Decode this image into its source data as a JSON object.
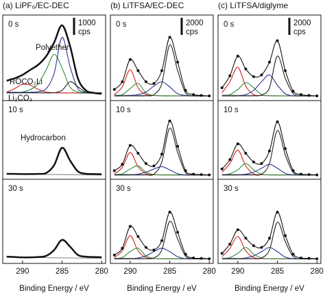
{
  "chart_data": [
    {
      "type": "line",
      "title": "(a) LiPF₆/EC-DEC",
      "label": "0 s",
      "x": [
        292,
        291,
        290,
        289,
        288,
        287,
        286,
        285,
        284,
        283,
        282,
        281,
        280
      ],
      "xlim": [
        292.5,
        279.5
      ],
      "ylim": [
        0,
        5000
      ],
      "scale_bar": {
        "value": 1000,
        "label": "1000",
        "unit": "cps"
      },
      "annotations": [
        {
          "text": "Polyether",
          "color": "#26348f"
        },
        {
          "text": "ROCO₂Li",
          "color": "#2e8b3a"
        },
        {
          "text": "Li₂CO₃",
          "color": "#d42020"
        }
      ],
      "series": [
        {
          "color": "#888888",
          "values": [
            500,
            490,
            480,
            470,
            460,
            455,
            450,
            445,
            440,
            435,
            430,
            425,
            420
          ]
        },
        {
          "color": "#d42020",
          "values": [
            500,
            700,
            950,
            900,
            650,
            500,
            460,
            450,
            450,
            450,
            450,
            450,
            450
          ]
        },
        {
          "color": "#2e8b3a",
          "values": [
            450,
            460,
            500,
            650,
            1000,
            1800,
            2700,
            1900,
            800,
            500,
            450,
            450,
            450
          ]
        },
        {
          "color": "#26348f",
          "values": [
            480,
            480,
            480,
            490,
            520,
            700,
            1600,
            3700,
            2000,
            700,
            480,
            460,
            450
          ]
        },
        {
          "color": "#222222",
          "values": [
            450,
            450,
            450,
            450,
            450,
            450,
            460,
            600,
            1100,
            800,
            500,
            450,
            450
          ]
        },
        {
          "color": "#111111",
          "width": 2.5,
          "values": [
            1160,
            1300,
            1500,
            1800,
            2100,
            2600,
            3400,
            4400,
            3200,
            1300,
            600,
            450,
            400
          ]
        }
      ]
    },
    {
      "type": "line",
      "label": "10 s",
      "x": [
        292,
        291,
        290,
        289,
        288,
        287,
        286,
        285,
        284,
        283,
        282,
        281,
        280
      ],
      "xlim": [
        292.5,
        279.5
      ],
      "ylim": [
        0,
        5000
      ],
      "annotations": [
        {
          "text": "Hydrocarbon",
          "color": "#111111"
        }
      ],
      "series": [
        {
          "color": "#888888",
          "values": [
            330,
            325,
            320,
            315,
            310,
            305,
            300,
            295,
            290,
            285,
            280,
            275,
            270
          ]
        },
        {
          "color": "#111111",
          "width": 2.5,
          "values": [
            350,
            340,
            330,
            330,
            340,
            400,
            900,
            2000,
            1200,
            500,
            350,
            330,
            320
          ]
        }
      ]
    },
    {
      "type": "line",
      "label": "30 s",
      "x": [
        292,
        291,
        290,
        289,
        288,
        287,
        286,
        285,
        284,
        283,
        282,
        281,
        280
      ],
      "xlim": [
        292.5,
        279.5
      ],
      "ylim": [
        0,
        5000
      ],
      "xticks": [
        290,
        285,
        280
      ],
      "xlabel": "Binding Energy / eV",
      "series": [
        {
          "color": "#888888",
          "values": [
            380,
            370,
            360,
            350,
            345,
            340,
            335,
            330,
            325,
            320,
            315,
            310,
            305
          ]
        },
        {
          "color": "#111111",
          "width": 2.5,
          "values": [
            400,
            380,
            360,
            360,
            380,
            450,
            800,
            1400,
            1000,
            500,
            400,
            380,
            370
          ]
        }
      ]
    },
    {
      "type": "line",
      "title": "(b) LiTFSA/EC-DEC",
      "label": "0 s",
      "x": [
        292,
        291,
        290,
        289,
        288,
        287,
        286,
        285,
        284,
        283,
        282,
        281,
        280
      ],
      "xlim": [
        292.5,
        279.5
      ],
      "ylim": [
        0,
        10000
      ],
      "scale_bar": {
        "value": 2000,
        "label": "2000",
        "unit": "cps"
      },
      "series": [
        {
          "color": "#888888",
          "values": [
            650,
            640,
            620,
            610,
            600,
            590,
            580,
            570,
            560,
            550,
            545,
            540,
            535
          ]
        },
        {
          "color": "#d42020",
          "values": [
            700,
            1600,
            3600,
            1500,
            700,
            600,
            560,
            550,
            550,
            550,
            550,
            550,
            550
          ]
        },
        {
          "color": "#2e8b3a",
          "values": [
            550,
            700,
            1400,
            2000,
            900,
            600,
            550,
            550,
            550,
            550,
            550,
            550,
            550
          ]
        },
        {
          "color": "#26348f",
          "values": [
            550,
            550,
            600,
            700,
            1000,
            1700,
            2200,
            1600,
            800,
            600,
            550,
            550,
            550
          ]
        },
        {
          "color": "#222222",
          "values": [
            550,
            550,
            550,
            550,
            560,
            700,
            2000,
            6500,
            3500,
            900,
            560,
            550,
            550
          ]
        },
        {
          "color": "#111111",
          "marker": true,
          "values": [
            1300,
            2200,
            4800,
            3500,
            2200,
            2000,
            3500,
            7400,
            4500,
            1200,
            700,
            600,
            550
          ]
        }
      ]
    },
    {
      "type": "line",
      "label": "10 s",
      "x": [
        292,
        291,
        290,
        289,
        288,
        287,
        286,
        285,
        284,
        283,
        282,
        281,
        280
      ],
      "xlim": [
        292.5,
        279.5
      ],
      "ylim": [
        0,
        10000
      ],
      "series": [
        {
          "color": "#888888",
          "values": [
            620,
            610,
            600,
            590,
            580,
            570,
            560,
            555,
            550,
            545,
            540,
            535,
            530
          ]
        },
        {
          "color": "#d42020",
          "values": [
            700,
            1500,
            3400,
            1600,
            700,
            580,
            560,
            550,
            550,
            550,
            550,
            550,
            550
          ]
        },
        {
          "color": "#2e8b3a",
          "values": [
            560,
            700,
            1300,
            1700,
            900,
            600,
            560,
            550,
            550,
            550,
            550,
            550,
            550
          ]
        },
        {
          "color": "#26348f",
          "values": [
            550,
            550,
            560,
            650,
            900,
            1300,
            1600,
            1200,
            700,
            560,
            550,
            550,
            550
          ]
        },
        {
          "color": "#222222",
          "values": [
            550,
            550,
            550,
            550,
            560,
            650,
            2200,
            6500,
            3400,
            850,
            560,
            550,
            550
          ]
        },
        {
          "color": "#111111",
          "marker": true,
          "values": [
            1100,
            1900,
            4300,
            3300,
            2000,
            1700,
            3200,
            7400,
            4200,
            1100,
            650,
            600,
            550
          ]
        }
      ]
    },
    {
      "type": "line",
      "label": "30 s",
      "x": [
        292,
        291,
        290,
        289,
        288,
        287,
        286,
        285,
        284,
        283,
        282,
        281,
        280
      ],
      "xlim": [
        292.5,
        279.5
      ],
      "ylim": [
        0,
        10000
      ],
      "xticks": [
        290,
        285,
        280
      ],
      "xlabel": "Binding Energy / eV",
      "series": [
        {
          "color": "#888888",
          "values": [
            620,
            610,
            600,
            590,
            580,
            570,
            560,
            555,
            550,
            545,
            540,
            535,
            530
          ]
        },
        {
          "color": "#d42020",
          "values": [
            700,
            1500,
            3300,
            1500,
            700,
            580,
            560,
            550,
            550,
            550,
            550,
            550,
            550
          ]
        },
        {
          "color": "#2e8b3a",
          "values": [
            560,
            700,
            1400,
            1800,
            900,
            600,
            560,
            550,
            550,
            550,
            550,
            550,
            550
          ]
        },
        {
          "color": "#26348f",
          "values": [
            550,
            550,
            560,
            650,
            900,
            1400,
            1800,
            1400,
            800,
            560,
            550,
            550,
            550
          ]
        },
        {
          "color": "#222222",
          "values": [
            550,
            550,
            550,
            550,
            560,
            650,
            1600,
            5000,
            2900,
            850,
            560,
            550,
            550
          ]
        },
        {
          "color": "#111111",
          "marker": true,
          "values": [
            1000,
            1800,
            4400,
            3200,
            1900,
            1600,
            2700,
            6100,
            3700,
            1100,
            650,
            600,
            550
          ]
        }
      ]
    },
    {
      "type": "line",
      "title": "(c) LiTFSA/diglyme",
      "label": "0 s",
      "x": [
        292,
        291,
        290,
        289,
        288,
        287,
        286,
        285,
        284,
        283,
        282,
        281,
        280
      ],
      "xlim": [
        292.5,
        279.5
      ],
      "ylim": [
        0,
        10000
      ],
      "scale_bar": {
        "value": 2000,
        "label": "2000",
        "unit": "cps"
      },
      "series": [
        {
          "color": "#888888",
          "values": [
            650,
            640,
            620,
            610,
            600,
            590,
            580,
            570,
            560,
            550,
            545,
            540,
            535
          ]
        },
        {
          "color": "#d42020",
          "values": [
            900,
            2200,
            3900,
            1700,
            700,
            600,
            560,
            550,
            550,
            550,
            550,
            550,
            550
          ]
        },
        {
          "color": "#2e8b3a",
          "values": [
            560,
            700,
            1300,
            2100,
            1500,
            700,
            560,
            550,
            550,
            550,
            550,
            550,
            550
          ]
        },
        {
          "color": "#26348f",
          "values": [
            550,
            550,
            560,
            700,
            1200,
            2200,
            3000,
            1800,
            800,
            560,
            550,
            550,
            550
          ]
        },
        {
          "color": "#222222",
          "values": [
            550,
            550,
            550,
            550,
            560,
            650,
            1500,
            5200,
            2600,
            800,
            560,
            550,
            550
          ]
        },
        {
          "color": "#111111",
          "marker": true,
          "values": [
            1500,
            2900,
            5200,
            3700,
            2800,
            3000,
            4500,
            7000,
            3500,
            1100,
            700,
            600,
            550
          ]
        }
      ]
    },
    {
      "type": "line",
      "label": "10 s",
      "x": [
        292,
        291,
        290,
        289,
        288,
        287,
        286,
        285,
        284,
        283,
        282,
        281,
        280
      ],
      "xlim": [
        292.5,
        279.5
      ],
      "ylim": [
        0,
        10000
      ],
      "series": [
        {
          "color": "#888888",
          "values": [
            620,
            610,
            600,
            590,
            580,
            570,
            560,
            555,
            550,
            545,
            540,
            535,
            530
          ]
        },
        {
          "color": "#d42020",
          "values": [
            900,
            2000,
            3700,
            1700,
            700,
            580,
            560,
            550,
            550,
            550,
            550,
            550,
            550
          ]
        },
        {
          "color": "#2e8b3a",
          "values": [
            560,
            700,
            1200,
            2000,
            1200,
            650,
            560,
            550,
            550,
            550,
            550,
            550,
            550
          ]
        },
        {
          "color": "#26348f",
          "values": [
            550,
            550,
            560,
            650,
            900,
            1400,
            1900,
            1400,
            750,
            560,
            550,
            550,
            550
          ]
        },
        {
          "color": "#222222",
          "values": [
            550,
            550,
            550,
            550,
            560,
            650,
            2000,
            6200,
            3100,
            850,
            560,
            550,
            550
          ]
        },
        {
          "color": "#111111",
          "marker": true,
          "values": [
            1300,
            2500,
            4500,
            3300,
            2200,
            2000,
            3600,
            7300,
            3900,
            1100,
            650,
            600,
            550
          ]
        }
      ]
    },
    {
      "type": "line",
      "label": "30 s",
      "x": [
        292,
        291,
        290,
        289,
        288,
        287,
        286,
        285,
        284,
        283,
        282,
        281,
        280
      ],
      "xlim": [
        292.5,
        279.5
      ],
      "ylim": [
        0,
        10000
      ],
      "xticks": [
        290,
        285,
        280
      ],
      "xlabel": "Binding Energy / eV",
      "series": [
        {
          "color": "#888888",
          "values": [
            620,
            610,
            600,
            590,
            580,
            570,
            560,
            555,
            550,
            545,
            540,
            535,
            530
          ]
        },
        {
          "color": "#d42020",
          "values": [
            800,
            1800,
            3200,
            1500,
            700,
            580,
            560,
            550,
            550,
            550,
            550,
            550,
            550
          ]
        },
        {
          "color": "#2e8b3a",
          "values": [
            560,
            700,
            1200,
            1900,
            1100,
            650,
            560,
            550,
            550,
            550,
            550,
            550,
            550
          ]
        },
        {
          "color": "#26348f",
          "values": [
            550,
            550,
            560,
            650,
            900,
            1400,
            1900,
            1400,
            750,
            560,
            550,
            550,
            550
          ]
        },
        {
          "color": "#222222",
          "values": [
            550,
            550,
            550,
            550,
            560,
            650,
            1600,
            4900,
            2600,
            800,
            560,
            550,
            550
          ]
        },
        {
          "color": "#111111",
          "marker": true,
          "values": [
            1200,
            2300,
            4000,
            3000,
            2100,
            1900,
            3000,
            6100,
            3300,
            1100,
            650,
            600,
            550
          ]
        }
      ]
    }
  ]
}
